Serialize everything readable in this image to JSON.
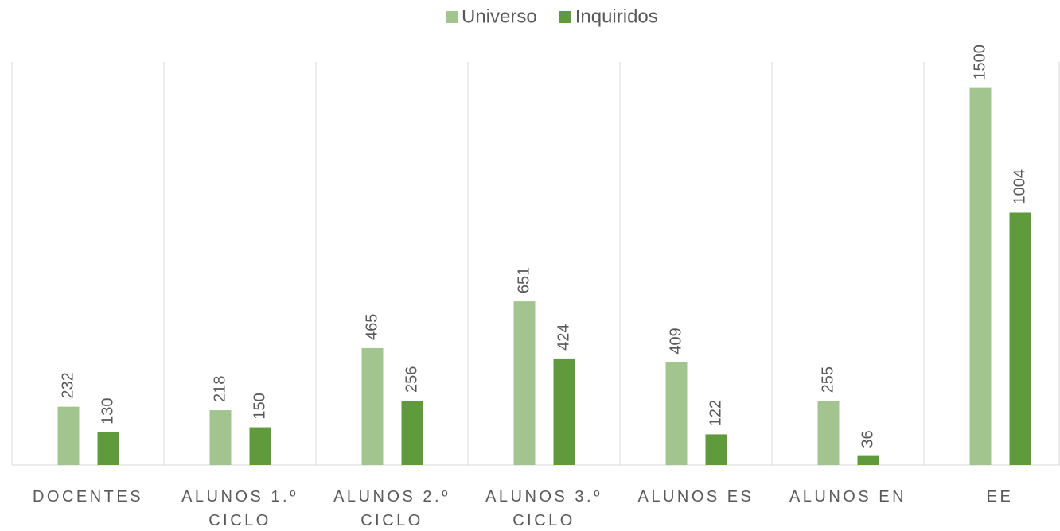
{
  "chart_data": {
    "type": "bar",
    "categories": [
      "DOCENTES",
      "ALUNOS 1.º CICLO",
      "ALUNOS 2.º CICLO",
      "ALUNOS 3.º CICLO",
      "ALUNOS ES",
      "ALUNOS EN",
      "EE"
    ],
    "series": [
      {
        "name": "Universo",
        "color": "#a2c58f",
        "values": [
          232,
          218,
          465,
          651,
          409,
          255,
          1500
        ]
      },
      {
        "name": "Inquiridos",
        "color": "#5f9a3d",
        "values": [
          130,
          150,
          256,
          424,
          122,
          36,
          1004
        ]
      }
    ],
    "ylim": [
      0,
      1600
    ],
    "legend": "top"
  }
}
